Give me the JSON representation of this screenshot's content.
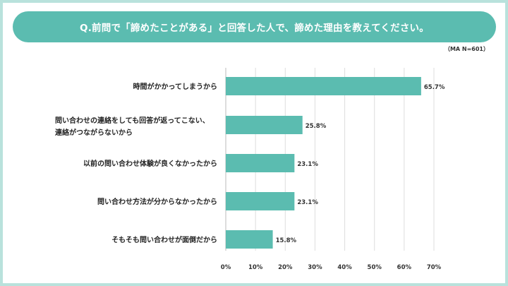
{
  "chart_data": {
    "type": "bar",
    "orientation": "horizontal",
    "title": "Q.前問で「諦めたことがある」と回答した人で、諦めた理由を教えてください。",
    "note": "（MA N=601）",
    "categories": [
      [
        "時間がかかってしまうから"
      ],
      [
        "問い合わせの連絡をしても回答が返ってこない、",
        "連絡がつながらないから"
      ],
      [
        "以前の問い合わせ体験が良くなかったから"
      ],
      [
        "問い合わせ方法が分からなかったから"
      ],
      [
        "そもそも問い合わせが面倒だから"
      ]
    ],
    "values": [
      65.7,
      25.8,
      23.1,
      23.1,
      15.8
    ],
    "value_labels": [
      "65.7%",
      "25.8%",
      "23.1%",
      "23.1%",
      "15.8%"
    ],
    "xlim": [
      0,
      70
    ],
    "ticks": [
      0,
      10,
      20,
      30,
      40,
      50,
      60,
      70
    ],
    "tick_labels": [
      "0%",
      "10%",
      "20%",
      "30%",
      "40%",
      "50%",
      "60%",
      "70%"
    ],
    "grid": true,
    "bar_color": "#5bbcb0",
    "grid_color": "#dddddd"
  },
  "colors": {
    "accent": "#5bbcb0",
    "border": "#b9e2dc"
  }
}
